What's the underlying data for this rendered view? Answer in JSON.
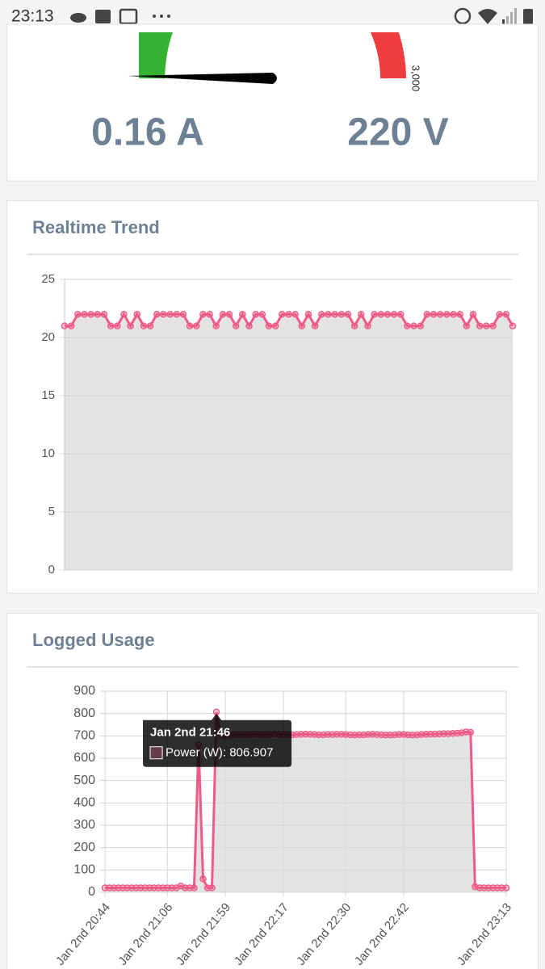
{
  "status_bar": {
    "time": "23:13"
  },
  "gauges": [
    {
      "value_text": "0.16 A"
    },
    {
      "value_text": "220 V",
      "max_label": "3,000"
    }
  ],
  "chart_data": [
    {
      "type": "line",
      "title": "Realtime Trend",
      "color": "#ee5b86",
      "fill": "#e3e3e3",
      "grid": true,
      "area": true,
      "values": [
        21,
        21,
        22,
        22,
        22,
        22,
        22,
        21,
        21,
        22,
        21,
        22,
        21,
        21,
        22,
        22,
        22,
        22,
        22,
        21,
        21,
        22,
        22,
        21,
        22,
        22,
        21,
        22,
        21,
        22,
        22,
        21,
        21,
        22,
        22,
        22,
        21,
        22,
        21,
        22,
        22,
        22,
        22,
        22,
        21,
        22,
        21,
        22,
        22,
        22,
        22,
        22,
        21,
        21,
        21,
        22,
        22,
        22,
        22,
        22,
        22,
        21,
        22,
        21,
        21,
        21,
        22,
        22,
        21
      ],
      "ylim": [
        0,
        25
      ],
      "yticks": [
        0,
        5,
        10,
        15,
        20,
        25
      ]
    },
    {
      "type": "line",
      "title": "Logged Usage",
      "color": "#ee5b86",
      "fill": "#e3e3e3",
      "grid": true,
      "area": true,
      "categories": [
        "Jan 2nd 20:44",
        null,
        null,
        null,
        null,
        null,
        null,
        null,
        null,
        null,
        null,
        null,
        null,
        null,
        "Jan 2nd 21:06",
        null,
        null,
        null,
        null,
        null,
        null,
        null,
        null,
        null,
        null,
        null,
        null,
        "Jan 2nd 21:59",
        null,
        null,
        null,
        null,
        null,
        null,
        null,
        null,
        null,
        null,
        null,
        null,
        "Jan 2nd 22:17",
        null,
        null,
        null,
        null,
        null,
        null,
        null,
        null,
        null,
        null,
        null,
        null,
        null,
        "Jan 2nd 22:30",
        null,
        null,
        null,
        null,
        null,
        null,
        null,
        null,
        null,
        null,
        null,
        null,
        "Jan 2nd 22:42",
        null,
        null,
        null,
        null,
        null,
        null,
        null,
        null,
        null,
        null,
        null,
        null,
        null,
        null,
        null,
        null,
        null,
        null,
        null,
        null,
        null,
        null,
        "Jan 2nd 23:13"
      ],
      "values": [
        20,
        20,
        20,
        20,
        20,
        20,
        20,
        20,
        20,
        20,
        20,
        20,
        20,
        20,
        20,
        20,
        20,
        28,
        20,
        20,
        20,
        660,
        60,
        20,
        20,
        806.907,
        705,
        700,
        703,
        705,
        706,
        707,
        705,
        708,
        708,
        707,
        706,
        707,
        708,
        708,
        707,
        706,
        705,
        706,
        707,
        708,
        707,
        706,
        705,
        705,
        706,
        706,
        707,
        707,
        706,
        705,
        704,
        705,
        705,
        706,
        707,
        706,
        705,
        704,
        704,
        705,
        706,
        706,
        705,
        704,
        705,
        706,
        707,
        708,
        708,
        709,
        710,
        710,
        711,
        712,
        714,
        718,
        716,
        25,
        20,
        20,
        20,
        20,
        20,
        20,
        20
      ],
      "ylim": [
        0,
        900
      ],
      "yticks": [
        0,
        100,
        200,
        300,
        400,
        500,
        600,
        700,
        800,
        900
      ],
      "tooltip": {
        "index": 25,
        "title": "Jan 2nd 21:46",
        "label": "Power (W): 806.907"
      }
    }
  ]
}
